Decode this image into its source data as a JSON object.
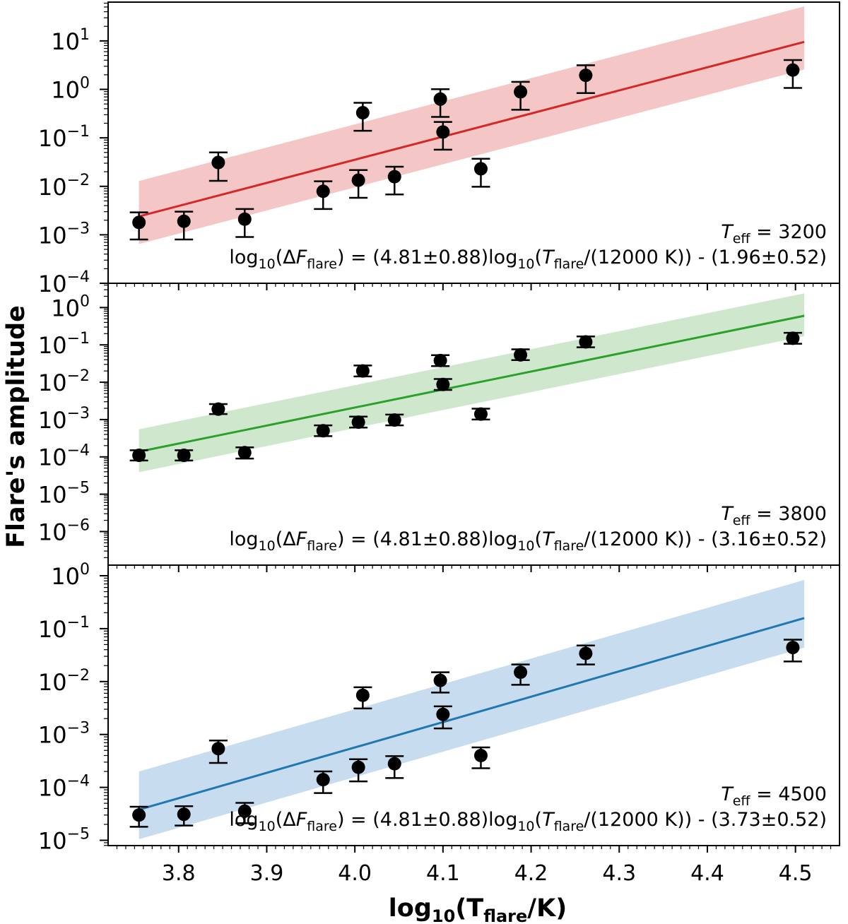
{
  "chart_data": {
    "type": "scatter",
    "ylabel": "Flare's amplitude",
    "xlabel": {
      "base": "log",
      "sub1": "10",
      "open": "(T",
      "sub2": "flare",
      "close": "/K)"
    },
    "x": [
      3.755,
      3.806,
      3.845,
      3.875,
      3.964,
      4.004,
      4.009,
      4.045,
      4.097,
      4.1,
      4.143,
      4.188,
      4.262,
      4.497
    ],
    "xlim": [
      3.72,
      4.55
    ],
    "xticks": [
      "3.8",
      "3.9",
      "4.0",
      "4.1",
      "4.2",
      "4.3",
      "4.4",
      "4.5"
    ],
    "xtick_values": [
      3.8,
      3.9,
      4.0,
      4.1,
      4.2,
      4.3,
      4.4,
      4.5
    ],
    "y_scale": "log",
    "panels": [
      {
        "teff_label": "T",
        "teff_sub": "eff",
        "teff_value": " = 3200",
        "equation": {
          "p1": "log",
          "p1sub": "10",
          "p2": "(Δ",
          "p3": "F",
          "p3sub": "flare",
          "p4": ") = (4.81±0.88)log",
          "p4sub": "10",
          "p5": "(",
          "p6": "T",
          "p6sub": "flare",
          "p7": "/(12000 K)) - (1.96±0.52)"
        },
        "color": "#d62728",
        "band_color": "#f4c6c6",
        "ylim_log": [
          -4,
          1.8
        ],
        "yticks_exp": [
          "−4",
          "−3",
          "−2",
          "−1",
          "0",
          "1"
        ],
        "ytick_values": [
          -4,
          -3,
          -2,
          -1,
          0,
          1
        ],
        "values": [
          0.0018,
          0.0019,
          0.031,
          0.0021,
          0.0079,
          0.0134,
          0.33,
          0.0158,
          0.63,
          0.132,
          0.023,
          0.89,
          1.95,
          2.5
        ],
        "err_low": [
          0.0008,
          0.0008,
          0.013,
          0.0009,
          0.0034,
          0.0058,
          0.14,
          0.0068,
          0.27,
          0.057,
          0.0098,
          0.38,
          0.84,
          1.07
        ],
        "err_high": [
          0.0029,
          0.003,
          0.05,
          0.0034,
          0.0127,
          0.0216,
          0.53,
          0.0254,
          1.01,
          0.213,
          0.037,
          1.43,
          3.14,
          4.02
        ],
        "fit": {
          "x0": 3.755,
          "y0_log": -2.62,
          "x1": 4.51,
          "y1_log": 0.98,
          "band_low": 0.57,
          "band_high": 0.73
        }
      },
      {
        "teff_label": "T",
        "teff_sub": "eff",
        "teff_value": " = 3800",
        "equation": {
          "p1": "log",
          "p1sub": "10",
          "p2": "(Δ",
          "p3": "F",
          "p3sub": "flare",
          "p4": ") = (4.81±0.88)log",
          "p4sub": "10",
          "p5": "(",
          "p6": "T",
          "p6sub": "flare",
          "p7": "/(12000 K)) - (3.16±0.52)"
        },
        "color": "#2ca02c",
        "band_color": "#cfe8cd",
        "ylim_log": [
          -6.9,
          0.65
        ],
        "yticks_exp": [
          "−6",
          "−5",
          "−4",
          "−3",
          "−2",
          "−1",
          "0"
        ],
        "ytick_values": [
          -6,
          -5,
          -4,
          -3,
          -2,
          -1,
          0
        ],
        "values": [
          0.00011,
          0.00011,
          0.0019,
          0.00013,
          0.0005,
          0.00085,
          0.02,
          0.00097,
          0.038,
          0.0087,
          0.0014,
          0.054,
          0.12,
          0.15
        ],
        "err_low": [
          8e-05,
          8e-05,
          0.0014,
          9e-05,
          0.00036,
          0.00061,
          0.0143,
          0.0007,
          0.027,
          0.0062,
          0.001,
          0.039,
          0.086,
          0.107
        ],
        "err_high": [
          0.00015,
          0.00015,
          0.0026,
          0.00018,
          0.0007,
          0.0012,
          0.028,
          0.00136,
          0.053,
          0.0122,
          0.00196,
          0.076,
          0.168,
          0.21
        ],
        "fit": {
          "x0": 3.755,
          "y0_log": -3.86,
          "x1": 4.51,
          "y1_log": -0.22,
          "band_low": 0.55,
          "band_high": 0.6
        }
      },
      {
        "teff_label": "T",
        "teff_sub": "eff",
        "teff_value": " = 4500",
        "equation": {
          "p1": "log",
          "p1sub": "10",
          "p2": "(Δ",
          "p3": "F",
          "p3sub": "flare",
          "p4": ") = (4.81±0.88)log",
          "p4sub": "10",
          "p5": "(",
          "p6": "T",
          "p6sub": "flare",
          "p7": "/(12000 K)) - (3.73±0.52)"
        },
        "color": "#1f77b4",
        "band_color": "#c7dcee",
        "ylim_log": [
          -5.1,
          0.2
        ],
        "yticks_exp": [
          "−5",
          "−4",
          "−3",
          "−2",
          "−1",
          "0"
        ],
        "ytick_values": [
          -5,
          -4,
          -3,
          -2,
          -1,
          0
        ],
        "values": [
          3e-05,
          3.1e-05,
          0.00054,
          3.55e-05,
          0.00014,
          0.00024,
          0.0055,
          0.00028,
          0.0105,
          0.0024,
          0.0004,
          0.015,
          0.034,
          0.044
        ],
        "err_low": [
          1.8e-05,
          1.9e-05,
          0.00029,
          2.1e-05,
          7.8e-05,
          0.00013,
          0.0031,
          0.00015,
          0.0062,
          0.0013,
          0.00023,
          0.0087,
          0.021,
          0.024
        ],
        "err_high": [
          4.3e-05,
          4.4e-05,
          0.00077,
          5.1e-05,
          0.0002,
          0.00034,
          0.0078,
          0.00039,
          0.015,
          0.0034,
          0.00057,
          0.021,
          0.048,
          0.062
        ],
        "fit": {
          "x0": 3.755,
          "y0_log": -4.42,
          "x1": 4.51,
          "y1_log": -0.8,
          "band_low": 0.56,
          "band_high": 0.72
        }
      }
    ]
  }
}
